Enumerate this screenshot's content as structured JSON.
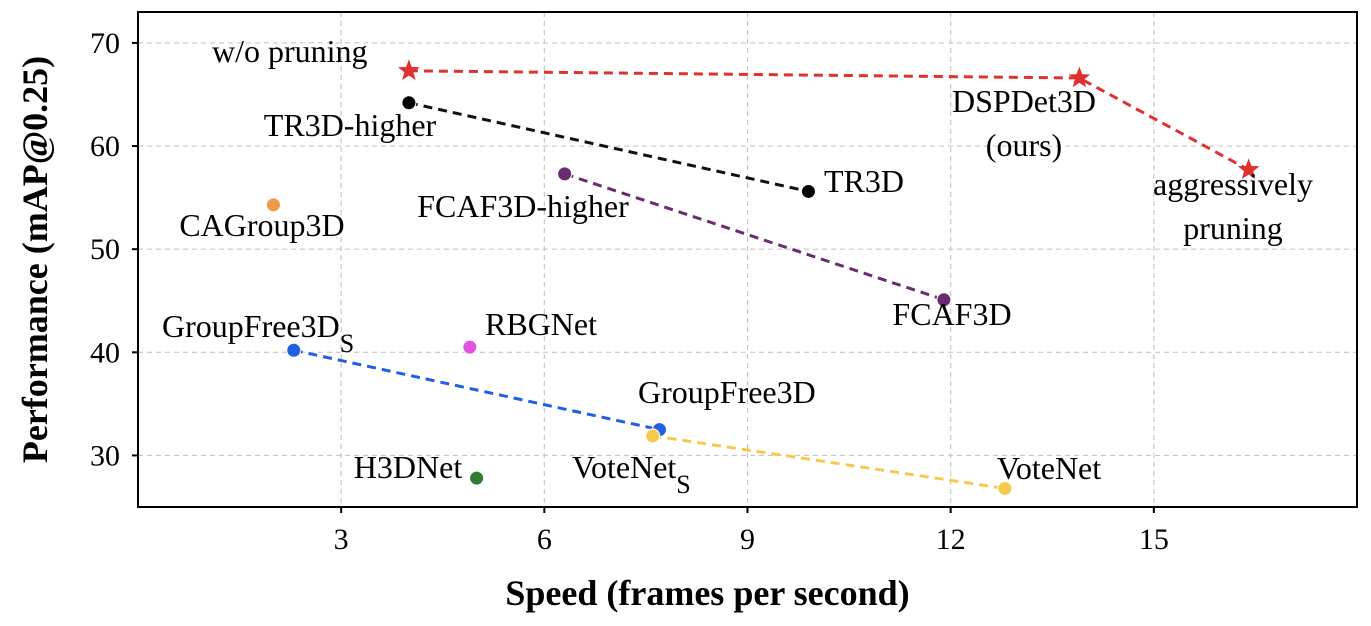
{
  "chart_data": {
    "type": "scatter",
    "xlabel": "Speed (frames per second)",
    "ylabel": "Performance (mAP@0.25)",
    "xlim": [
      0,
      18
    ],
    "ylim": [
      25,
      73
    ],
    "xticks": [
      3,
      6,
      9,
      12,
      15
    ],
    "yticks": [
      30,
      40,
      50,
      60,
      70
    ],
    "grid": true,
    "points": [
      {
        "name": "w/o pruning",
        "x": 4.0,
        "y": 67.3,
        "color": "#e03131",
        "marker": "star"
      },
      {
        "name": "DSPDet3D (ours)",
        "x": 13.9,
        "y": 66.6,
        "color": "#e03131",
        "marker": "star"
      },
      {
        "name": "aggressively pruning",
        "x": 16.4,
        "y": 57.7,
        "color": "#e03131",
        "marker": "star"
      },
      {
        "name": "TR3D-higher",
        "x": 4.0,
        "y": 64.2,
        "color": "#000000",
        "marker": "circle"
      },
      {
        "name": "TR3D",
        "x": 9.9,
        "y": 55.6,
        "color": "#000000",
        "marker": "circle"
      },
      {
        "name": "FCAF3D-higher",
        "x": 6.3,
        "y": 57.3,
        "color": "#6a2c70",
        "marker": "circle"
      },
      {
        "name": "FCAF3D",
        "x": 11.9,
        "y": 45.1,
        "color": "#6a2c70",
        "marker": "circle"
      },
      {
        "name": "CAGroup3D",
        "x": 2.0,
        "y": 54.3,
        "color": "#f0994a",
        "marker": "circle"
      },
      {
        "name": "RBGNet",
        "x": 4.9,
        "y": 40.5,
        "color": "#e055e0",
        "marker": "circle"
      },
      {
        "name": "GroupFree3D_S",
        "x": 2.3,
        "y": 40.2,
        "color": "#1f5fe0",
        "marker": "circle"
      },
      {
        "name": "GroupFree3D",
        "x": 7.7,
        "y": 32.5,
        "color": "#1f5fe0",
        "marker": "circle"
      },
      {
        "name": "VoteNet_S",
        "x": 7.6,
        "y": 31.9,
        "color": "#f5c94e",
        "marker": "circle"
      },
      {
        "name": "VoteNet",
        "x": 12.8,
        "y": 26.8,
        "color": "#f5c94e",
        "marker": "circle"
      },
      {
        "name": "H3DNet",
        "x": 5.0,
        "y": 27.8,
        "color": "#2e7d32",
        "marker": "circle"
      }
    ],
    "series": [
      {
        "name": "DSPDet3D",
        "color": "#e03131",
        "points": [
          "w/o pruning",
          "DSPDet3D (ours)",
          "aggressively pruning"
        ]
      },
      {
        "name": "TR3D",
        "color": "#111111",
        "points": [
          "TR3D-higher",
          "TR3D"
        ]
      },
      {
        "name": "FCAF3D",
        "color": "#6a2c70",
        "points": [
          "FCAF3D-higher",
          "FCAF3D"
        ]
      },
      {
        "name": "GroupFree3D",
        "color": "#1f5fe0",
        "points": [
          "GroupFree3D_S",
          "GroupFree3D"
        ]
      },
      {
        "name": "VoteNet",
        "color": "#f5c94e",
        "points": [
          "VoteNet_S",
          "VoteNet"
        ]
      }
    ],
    "labels": [
      {
        "for": "w/o pruning",
        "lines": [
          "w/o pruning"
        ]
      },
      {
        "for": "DSPDet3D (ours)",
        "lines": [
          "DSPDet3D",
          "(ours)"
        ]
      },
      {
        "for": "aggressively pruning",
        "lines": [
          "aggressively",
          "pruning"
        ]
      },
      {
        "for": "TR3D-higher",
        "lines": [
          "TR3D-higher"
        ]
      },
      {
        "for": "TR3D",
        "lines": [
          "TR3D"
        ]
      },
      {
        "for": "FCAF3D-higher",
        "lines": [
          "FCAF3D-higher"
        ]
      },
      {
        "for": "FCAF3D",
        "lines": [
          "FCAF3D"
        ]
      },
      {
        "for": "CAGroup3D",
        "lines": [
          "CAGroup3D"
        ]
      },
      {
        "for": "RBGNet",
        "lines": [
          "RBGNet"
        ]
      },
      {
        "for": "GroupFree3D_S",
        "lines": [
          "GroupFree3D"
        ],
        "subscript": "S"
      },
      {
        "for": "GroupFree3D",
        "lines": [
          "GroupFree3D"
        ]
      },
      {
        "for": "VoteNet_S",
        "lines": [
          "VoteNet"
        ],
        "subscript": "S"
      },
      {
        "for": "VoteNet",
        "lines": [
          "VoteNet"
        ]
      },
      {
        "for": "H3DNet",
        "lines": [
          "H3DNet"
        ]
      }
    ]
  }
}
